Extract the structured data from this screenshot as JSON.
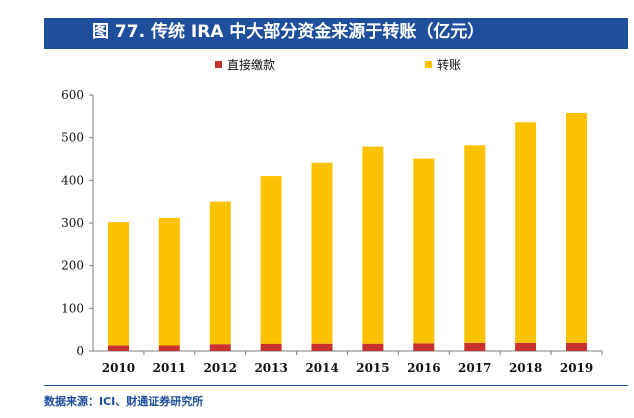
{
  "header": {
    "title": "图 77. 传统 IRA 中大部分资金来源于转账（亿元）"
  },
  "footer": {
    "source": "数据来源：ICI、财通证券研究所"
  },
  "colors": {
    "direct": "#c8312d",
    "transfer": "#fbc200",
    "title_bg": "#1f4e9c"
  },
  "chart_data": {
    "type": "bar",
    "stacked": true,
    "title": "图 77. 传统 IRA 中大部分资金来源于转账（亿元）",
    "xlabel": "",
    "ylabel": "",
    "ylim": [
      0,
      600
    ],
    "yticks": [
      0,
      100,
      200,
      300,
      400,
      500,
      600
    ],
    "legend_position": "top",
    "grid": false,
    "categories": [
      "2010",
      "2011",
      "2012",
      "2013",
      "2014",
      "2015",
      "2016",
      "2017",
      "2018",
      "2019"
    ],
    "series": [
      {
        "name": "直接缴款",
        "color": "#c8312d",
        "values": [
          13,
          13,
          16,
          17,
          17,
          17,
          18,
          19,
          19,
          19
        ]
      },
      {
        "name": "转账",
        "color": "#fbc200",
        "values": [
          289,
          299,
          334,
          393,
          424,
          462,
          433,
          463,
          517,
          539
        ]
      }
    ]
  }
}
